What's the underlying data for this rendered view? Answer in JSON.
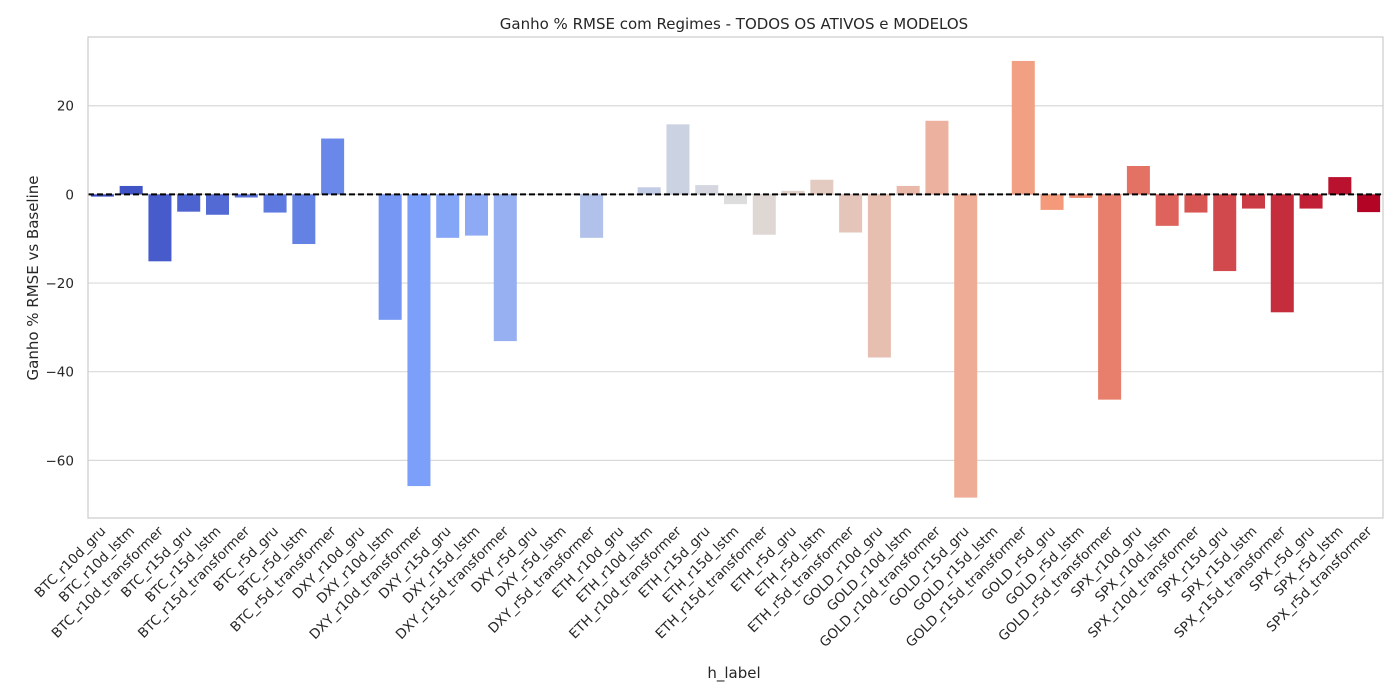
{
  "chart_data": {
    "type": "bar",
    "title": "Ganho % RMSE com Regimes - TODOS OS ATIVOS e MODELOS",
    "xlabel": "h_label",
    "ylabel": "Ganho % RMSE vs Baseline",
    "ylim": [
      -73,
      35.5
    ],
    "yticks": [
      20,
      0,
      -20,
      -40,
      -60
    ],
    "ytick_labels": [
      "20",
      "0",
      "−20",
      "−40",
      "−60"
    ],
    "grid": "horizontal",
    "reference_line": {
      "y": 0,
      "style": "dashed",
      "color": "#000000"
    },
    "categories": [
      "BTC_r10d_gru",
      "BTC_r10d_lstm",
      "BTC_r10d_transformer",
      "BTC_r15d_gru",
      "BTC_r15d_lstm",
      "BTC_r15d_transformer",
      "BTC_r5d_gru",
      "BTC_r5d_lstm",
      "BTC_r5d_transformer",
      "DXY_r10d_gru",
      "DXY_r10d_lstm",
      "DXY_r10d_transformer",
      "DXY_r15d_gru",
      "DXY_r15d_lstm",
      "DXY_r15d_transformer",
      "DXY_r5d_gru",
      "DXY_r5d_lstm",
      "DXY_r5d_transformer",
      "ETH_r10d_gru",
      "ETH_r10d_lstm",
      "ETH_r10d_transformer",
      "ETH_r15d_gru",
      "ETH_r15d_lstm",
      "ETH_r15d_transformer",
      "ETH_r5d_gru",
      "ETH_r5d_lstm",
      "ETH_r5d_transformer",
      "GOLD_r10d_gru",
      "GOLD_r10d_lstm",
      "GOLD_r10d_transformer",
      "GOLD_r15d_gru",
      "GOLD_r15d_lstm",
      "GOLD_r15d_transformer",
      "GOLD_r5d_gru",
      "GOLD_r5d_lstm",
      "GOLD_r5d_transformer",
      "SPX_r10d_gru",
      "SPX_r10d_lstm",
      "SPX_r10d_transformer",
      "SPX_r15d_gru",
      "SPX_r15d_lstm",
      "SPX_r15d_transformer",
      "SPX_r5d_gru",
      "SPX_r5d_lstm",
      "SPX_r5d_transformer"
    ],
    "values": [
      -0.5,
      1.9,
      -15.1,
      -3.9,
      -4.6,
      -0.7,
      -4.1,
      -11.2,
      12.6,
      0,
      -28.3,
      -65.8,
      -9.8,
      -9.3,
      -33.1,
      0,
      0,
      -9.8,
      0,
      1.6,
      15.8,
      2.1,
      -2.2,
      -9.1,
      0.8,
      3.3,
      -8.6,
      -36.8,
      1.9,
      16.6,
      -68.4,
      0,
      30.1,
      -3.5,
      -0.8,
      -46.3,
      6.4,
      -7.1,
      -4.1,
      -17.3,
      -3.2,
      -26.6,
      -3.2,
      3.9,
      -4.0
    ],
    "palette": "coolwarm"
  }
}
